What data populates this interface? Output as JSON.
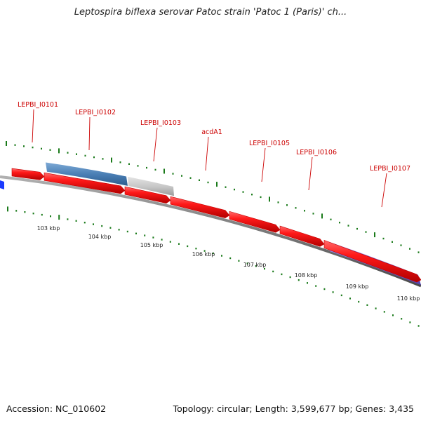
{
  "title": "Leptospira biflexa serovar Patoc strain 'Patoc 1 (Paris)' ch...",
  "footer": {
    "accession": "Accession: NC_010602",
    "summary": "Topology: circular; Length: 3,599,677 bp; Genes: 3,435"
  },
  "colors": {
    "gene_red": "#ee1111",
    "blue_feature": "#4a7fb5",
    "grey_feature": "#c8c8c8",
    "purple_feature": "#7b68d6",
    "backbone": "#7f7f7f",
    "tick_green": "#1a7a1a",
    "label_red": "#cc0000"
  },
  "gene_labels": [
    "LEPBI_I0101",
    "LEPBI_I0102",
    "LEPBI_I0103",
    "acdA1",
    "LEPBI_I0105",
    "LEPBI_I0106",
    "LEPBI_I0107"
  ],
  "scale_labels": [
    "103 kbp",
    "104 kbp",
    "105 kbp",
    "106 kbp",
    "107 kbp",
    "108 kbp",
    "109 kbp",
    "110 kbp"
  ]
}
